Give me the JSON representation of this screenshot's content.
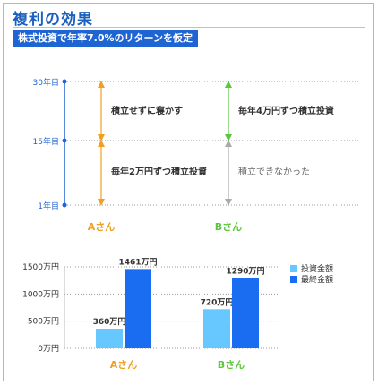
{
  "header": {
    "title": "複利の効果",
    "subtitle": "株式投資で年率7.0%のリターンを仮定"
  },
  "timeline": {
    "years": [
      "30年目",
      "15年目",
      "1年目"
    ],
    "people": [
      "Aさん",
      "Bさん"
    ],
    "a_upper_label": "積立せずに寝かす",
    "a_lower_label": "毎年2万円ずつ積立投資",
    "b_upper_label": "毎年4万円ずつ積立投資",
    "b_lower_label": "積立できなかった",
    "colors": {
      "axis": "#1e64d2",
      "a": "#f0a020",
      "b_green": "#5cc63c",
      "b_gray": "#aaaaaa",
      "name": "#f0a020",
      "name_b": "#5cc63c"
    }
  },
  "chart_data": {
    "type": "bar",
    "categories": [
      "Aさん",
      "Bさん"
    ],
    "series": [
      {
        "name": "投資金額",
        "values": [
          360,
          720
        ],
        "color": "#66c8ff"
      },
      {
        "name": "最終金額",
        "values": [
          1461,
          1290
        ],
        "color": "#1a6cf0"
      }
    ],
    "data_labels": [
      [
        "360万円",
        "1461万円"
      ],
      [
        "720万円",
        "1290万円"
      ]
    ],
    "yticks": [
      0,
      500,
      1000,
      1500
    ],
    "ytick_labels": [
      "0万円",
      "500万円",
      "1000万円",
      "1500万円"
    ],
    "ylim": [
      0,
      1500
    ],
    "legend_position": "right"
  }
}
